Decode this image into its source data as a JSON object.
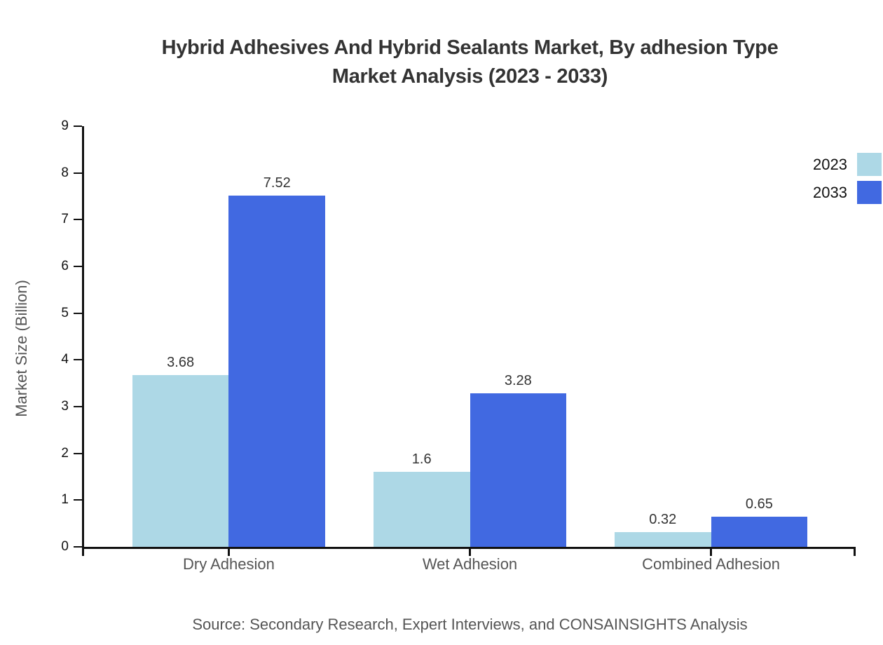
{
  "title": {
    "line1": "Hybrid Adhesives And Hybrid Sealants Market, By adhesion Type",
    "line2": "Market Analysis (2023 - 2033)"
  },
  "source": "Source: Secondary Research, Expert Interviews, and CONSAINSIGHTS Analysis",
  "chart_data": {
    "type": "bar",
    "title": "Hybrid Adhesives And Hybrid Sealants Market, By adhesion Type Market Analysis (2023 - 2033)",
    "categories": [
      "Dry Adhesion",
      "Wet Adhesion",
      "Combined Adhesion"
    ],
    "series": [
      {
        "name": "2023",
        "color": "#ADD8E6",
        "values": [
          3.68,
          1.6,
          0.32
        ]
      },
      {
        "name": "2033",
        "color": "#4169E1",
        "values": [
          7.52,
          3.28,
          0.65
        ]
      }
    ],
    "xlabel": "",
    "ylabel": "Market Size (Billion)",
    "ylim": [
      0,
      9
    ],
    "yticks": [
      0,
      1,
      2,
      3,
      4,
      5,
      6,
      7,
      8,
      9
    ],
    "grid": false,
    "legend_position": "top-right",
    "bar_value_labels": [
      "3.68",
      "7.52",
      "1.6",
      "3.28",
      "0.32",
      "0.65"
    ]
  },
  "colors": {
    "background": "#ffffff",
    "title": "#333333",
    "axis": "#111111",
    "y_tick_label": "#111111",
    "category_label": "#555555",
    "axis_title": "#555555",
    "value_label": "#333333",
    "legend_label": "#111111",
    "source": "#555555",
    "series_2023": "#ADD8E6",
    "series_2033": "#4169E1"
  }
}
